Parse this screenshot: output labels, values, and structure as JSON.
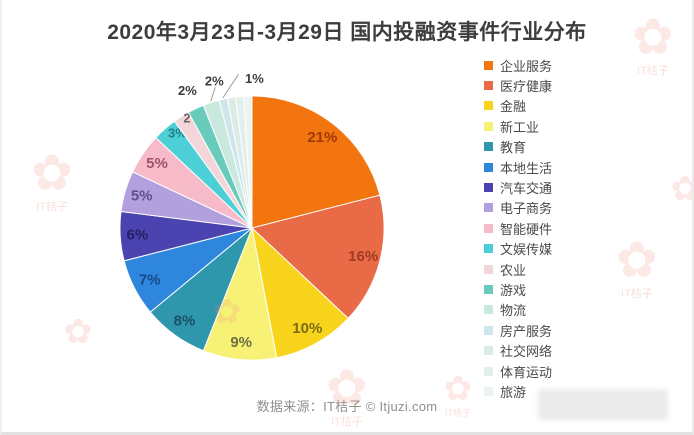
{
  "page": {
    "title": "2020年3月23日-3月29日 国内投融资事件行业分布",
    "source_caption": "数据来源：IT桔子 © Itjuzi.com",
    "watermark_text": "IT桔子"
  },
  "chart_data": {
    "type": "pie",
    "title": "2020年3月23日-3月29日 国内投融资事件行业分布",
    "unit": "percent",
    "total": 100,
    "start_angle_deg": 0,
    "direction": "clockwise",
    "legend_position": "right",
    "slices": [
      {
        "label": "企业服务",
        "value": 21,
        "pct": "21%",
        "color": "#F2750F",
        "label_color": "#9D3A05",
        "placement": "inside"
      },
      {
        "label": "医疗健康",
        "value": 16,
        "pct": "16%",
        "color": "#E96A47",
        "label_color": "#9E3B20",
        "placement": "inside"
      },
      {
        "label": "金融",
        "value": 10,
        "pct": "10%",
        "color": "#F8D41C",
        "label_color": "#7C6A12",
        "placement": "inside"
      },
      {
        "label": "新工业",
        "value": 9,
        "pct": "9%",
        "color": "#F7F276",
        "label_color": "#6F6F45",
        "placement": "inside"
      },
      {
        "label": "教育",
        "value": 8,
        "pct": "8%",
        "color": "#2F97AC",
        "label_color": "#1B4F66",
        "placement": "inside"
      },
      {
        "label": "本地生活",
        "value": 7,
        "pct": "7%",
        "color": "#2E86DD",
        "label_color": "#17498A",
        "placement": "inside"
      },
      {
        "label": "汽车交通",
        "value": 6,
        "pct": "6%",
        "color": "#4B43B0",
        "label_color": "#262063",
        "placement": "inside"
      },
      {
        "label": "电子商务",
        "value": 5,
        "pct": "5%",
        "color": "#B2A0DE",
        "label_color": "#5D4F87",
        "placement": "inside"
      },
      {
        "label": "智能硬件",
        "value": 5,
        "pct": "5%",
        "color": "#F6BAC9",
        "label_color": "#A05468",
        "placement": "inside"
      },
      {
        "label": "文娱传媒",
        "value": 3,
        "pct": "3%",
        "color": "#4CCFD6",
        "label_color": "#1F7E87",
        "placement": "inside-edge"
      },
      {
        "label": "农业",
        "value": 2,
        "pct": "2%",
        "color": "#F3D6DA",
        "label_color": "#6B5F61",
        "placement": "edge"
      },
      {
        "label": "游戏",
        "value": 2,
        "pct": "2%",
        "color": "#69CBBC",
        "label_color": "#3D3D3D",
        "placement": "outside"
      },
      {
        "label": "物流",
        "value": 2,
        "pct": "2%",
        "color": "#C9E9DE",
        "label_color": "#3D3D3D",
        "placement": "outside-line"
      },
      {
        "label": "房产服务",
        "value": 1,
        "pct": "1%",
        "color": "#CFE6EC",
        "label_color": "#3D3D3D",
        "placement": "outside-line-right"
      },
      {
        "label": "社交网络",
        "value": 1,
        "pct": "1%",
        "color": "#DCEBE6",
        "label_color": "#3D3D3D",
        "placement": "none"
      },
      {
        "label": "体育运动",
        "value": 1,
        "pct": "1%",
        "color": "#E3EFEA",
        "label_color": "#3D3D3D",
        "placement": "none"
      },
      {
        "label": "旅游",
        "value": 1,
        "pct": "1%",
        "color": "#EBF4F0",
        "label_color": "#3D3D3D",
        "placement": "none"
      }
    ]
  }
}
